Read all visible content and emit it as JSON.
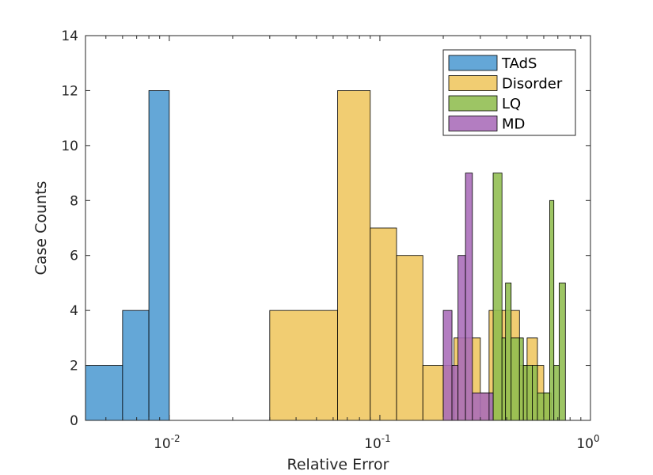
{
  "chart_data": {
    "type": "histogram",
    "title": "",
    "xlabel": "Relative Error",
    "ylabel": "Case Counts",
    "xscale": "log",
    "xlim": [
      0.004,
      1
    ],
    "ylim": [
      0,
      14
    ],
    "xticks": [
      {
        "value": 0.01,
        "base": "10",
        "exp": "-2"
      },
      {
        "value": 0.1,
        "base": "10",
        "exp": "-1"
      },
      {
        "value": 1,
        "base": "10",
        "exp": "0"
      }
    ],
    "yticks": [
      "0",
      "2",
      "4",
      "6",
      "8",
      "10",
      "12",
      "14"
    ],
    "legend_position": "top-right",
    "series": [
      {
        "name": "TAdS",
        "color": "#4f9bd1",
        "bins": [
          {
            "x0": 0.004,
            "x1": 0.006,
            "count": 2
          },
          {
            "x0": 0.006,
            "x1": 0.008,
            "count": 4
          },
          {
            "x0": 0.008,
            "x1": 0.01,
            "count": 12
          }
        ]
      },
      {
        "name": "Disorder",
        "color": "#efc65f",
        "bins": [
          {
            "x0": 0.03,
            "x1": 0.063,
            "count": 4
          },
          {
            "x0": 0.063,
            "x1": 0.09,
            "count": 12
          },
          {
            "x0": 0.09,
            "x1": 0.12,
            "count": 7
          },
          {
            "x0": 0.12,
            "x1": 0.16,
            "count": 6
          },
          {
            "x0": 0.16,
            "x1": 0.2,
            "count": 2
          },
          {
            "x0": 0.2,
            "x1": 0.225,
            "count": 2
          },
          {
            "x0": 0.225,
            "x1": 0.3,
            "count": 3
          },
          {
            "x0": 0.3,
            "x1": 0.33,
            "count": 1
          },
          {
            "x0": 0.33,
            "x1": 0.38,
            "count": 4
          },
          {
            "x0": 0.38,
            "x1": 0.46,
            "count": 4
          },
          {
            "x0": 0.46,
            "x1": 0.5,
            "count": 2
          },
          {
            "x0": 0.5,
            "x1": 0.56,
            "count": 3
          },
          {
            "x0": 0.56,
            "x1": 0.6,
            "count": 2
          },
          {
            "x0": 0.6,
            "x1": 0.65,
            "count": 1
          }
        ]
      },
      {
        "name": "LQ",
        "color": "#8fbd4f",
        "bins": [
          {
            "x0": 0.33,
            "x1": 0.345,
            "count": 1
          },
          {
            "x0": 0.345,
            "x1": 0.38,
            "count": 9
          },
          {
            "x0": 0.38,
            "x1": 0.395,
            "count": 3
          },
          {
            "x0": 0.395,
            "x1": 0.42,
            "count": 5
          },
          {
            "x0": 0.42,
            "x1": 0.46,
            "count": 3
          },
          {
            "x0": 0.46,
            "x1": 0.48,
            "count": 3
          },
          {
            "x0": 0.48,
            "x1": 0.5,
            "count": 2
          },
          {
            "x0": 0.5,
            "x1": 0.53,
            "count": 2
          },
          {
            "x0": 0.53,
            "x1": 0.56,
            "count": 2
          },
          {
            "x0": 0.56,
            "x1": 0.6,
            "count": 1
          },
          {
            "x0": 0.6,
            "x1": 0.64,
            "count": 1
          },
          {
            "x0": 0.64,
            "x1": 0.67,
            "count": 8
          },
          {
            "x0": 0.67,
            "x1": 0.71,
            "count": 2
          },
          {
            "x0": 0.71,
            "x1": 0.76,
            "count": 5
          }
        ]
      },
      {
        "name": "MD",
        "color": "#a86bb8",
        "bins": [
          {
            "x0": 0.2,
            "x1": 0.22,
            "count": 4
          },
          {
            "x0": 0.22,
            "x1": 0.235,
            "count": 2
          },
          {
            "x0": 0.235,
            "x1": 0.255,
            "count": 6
          },
          {
            "x0": 0.255,
            "x1": 0.275,
            "count": 9
          },
          {
            "x0": 0.275,
            "x1": 0.33,
            "count": 1
          },
          {
            "x0": 0.33,
            "x1": 0.345,
            "count": 1
          }
        ]
      }
    ]
  }
}
